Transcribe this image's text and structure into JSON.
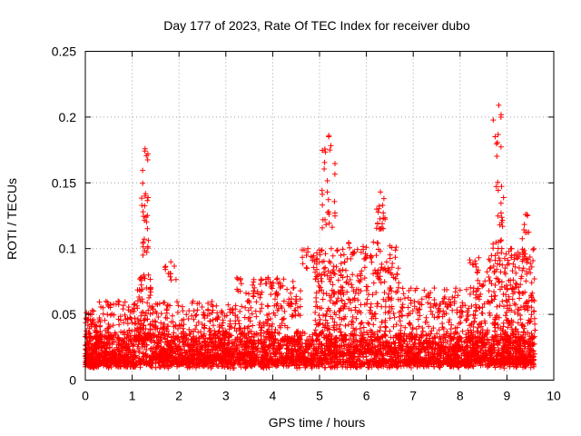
{
  "chart_data": {
    "type": "scatter",
    "title": "Day 177 of 2023, Rate Of TEC Index for receiver dubo",
    "xlabel": "GPS time / hours",
    "ylabel": "ROTI / TECUs",
    "xlim": [
      0,
      10
    ],
    "ylim": [
      0,
      0.25
    ],
    "xticks": [
      "0",
      "1",
      "2",
      "3",
      "4",
      "5",
      "6",
      "7",
      "8",
      "9",
      "10"
    ],
    "yticks": [
      "0",
      "0.05",
      "0.1",
      "0.15",
      "0.2",
      "0.25"
    ],
    "grid": true,
    "marker": "+",
    "colors": {
      "series": "#ff0000",
      "grid": "#a0a0a0",
      "axis": "#000000"
    },
    "data_extent": {
      "x_min": 0.0,
      "x_max": 9.6
    },
    "baseline": {
      "typical_low": 0.012,
      "typical_high": 0.035
    },
    "clusters": [
      {
        "x_start": 0.0,
        "x_end": 0.3,
        "y_min": 0.01,
        "y_max": 0.053,
        "count": 140
      },
      {
        "x_start": 0.3,
        "x_end": 1.1,
        "y_min": 0.01,
        "y_max": 0.06,
        "count": 220
      },
      {
        "x_start": 1.1,
        "x_end": 1.4,
        "y_min": 0.03,
        "y_max": 0.08,
        "count": 90
      },
      {
        "x_start": 1.2,
        "x_end": 1.35,
        "y_min": 0.095,
        "y_max": 0.176,
        "count": 30
      },
      {
        "x_start": 1.7,
        "x_end": 1.95,
        "y_min": 0.076,
        "y_max": 0.09,
        "count": 10
      },
      {
        "x_start": 1.4,
        "x_end": 3.2,
        "y_min": 0.015,
        "y_max": 0.06,
        "count": 420
      },
      {
        "x_start": 3.2,
        "x_end": 4.6,
        "y_min": 0.015,
        "y_max": 0.078,
        "count": 360
      },
      {
        "x_start": 4.6,
        "x_end": 4.9,
        "y_min": 0.085,
        "y_max": 0.1,
        "count": 14
      },
      {
        "x_start": 4.9,
        "x_end": 5.6,
        "y_min": 0.02,
        "y_max": 0.1,
        "count": 220
      },
      {
        "x_start": 5.05,
        "x_end": 5.35,
        "y_min": 0.115,
        "y_max": 0.186,
        "count": 28
      },
      {
        "x_start": 5.6,
        "x_end": 6.7,
        "y_min": 0.02,
        "y_max": 0.105,
        "count": 300
      },
      {
        "x_start": 6.2,
        "x_end": 6.4,
        "y_min": 0.115,
        "y_max": 0.143,
        "count": 20
      },
      {
        "x_start": 6.7,
        "x_end": 8.2,
        "y_min": 0.012,
        "y_max": 0.07,
        "count": 380
      },
      {
        "x_start": 8.2,
        "x_end": 8.6,
        "y_min": 0.015,
        "y_max": 0.093,
        "count": 120
      },
      {
        "x_start": 8.6,
        "x_end": 9.6,
        "y_min": 0.012,
        "y_max": 0.1,
        "count": 400
      },
      {
        "x_start": 8.7,
        "x_end": 8.95,
        "y_min": 0.1,
        "y_max": 0.209,
        "count": 30
      },
      {
        "x_start": 9.3,
        "x_end": 9.5,
        "y_min": 0.09,
        "y_max": 0.126,
        "count": 16
      }
    ]
  }
}
